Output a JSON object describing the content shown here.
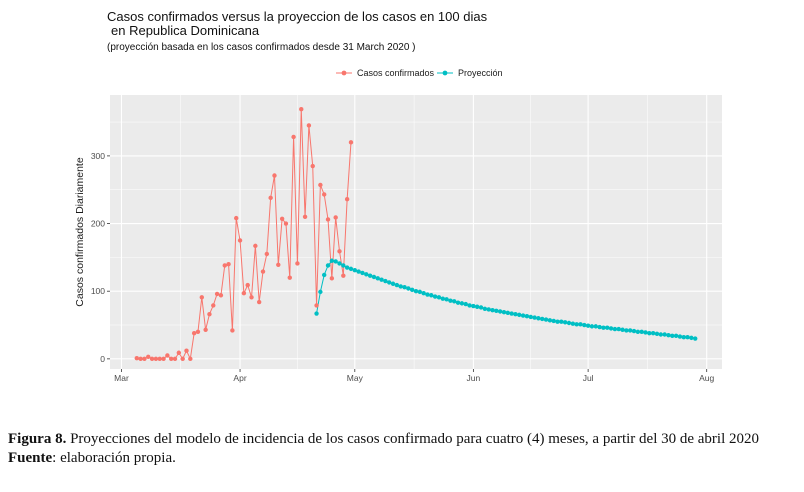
{
  "title_line1": "Casos confirmados  versus la proyeccion de los casos en 100 dias",
  "title_line2": "en Republica Dominicana",
  "subtitle": "(proyección basada en los casos confirmados desde 31 March 2020 )",
  "caption": {
    "figure_label": "Figura 8.",
    "figure_text": " Proyecciones del modelo de incidencia de los casos confirmado para cuatro (4) meses, a partir del 30 de abril 2020",
    "source_label": "Fuente",
    "source_text": ": elaboración propia."
  },
  "colors": {
    "panel_bg": "#ebebeb",
    "grid": "#ffffff",
    "confirmed": "#f8766d",
    "projection": "#00bfc4"
  },
  "chart_data": {
    "type": "line",
    "title": "Casos confirmados  versus la proyeccion de los casos en 100 dias en Republica Dominicana",
    "subtitle": "(proyección basada en los casos confirmados desde 31 March 2020 )",
    "xlabel": "",
    "ylabel": "Casos confirmados Diariamente",
    "xlim": [
      "2020-02-27",
      "2020-08-05"
    ],
    "ylim": [
      -15,
      390
    ],
    "x_ticks": [
      {
        "date": "2020-03-01",
        "label": "Mar"
      },
      {
        "date": "2020-04-01",
        "label": "Apr"
      },
      {
        "date": "2020-05-01",
        "label": "May"
      },
      {
        "date": "2020-06-01",
        "label": "Jun"
      },
      {
        "date": "2020-07-01",
        "label": "Jul"
      },
      {
        "date": "2020-08-01",
        "label": "Aug"
      }
    ],
    "y_ticks": [
      0,
      100,
      200,
      300
    ],
    "grid": true,
    "legend_position": "top",
    "series": [
      {
        "name": "Casos confirmados",
        "color": "#f8766d",
        "points": [
          [
            "2020-03-05",
            1
          ],
          [
            "2020-03-06",
            0
          ],
          [
            "2020-03-07",
            0
          ],
          [
            "2020-03-08",
            3
          ],
          [
            "2020-03-09",
            0
          ],
          [
            "2020-03-10",
            0
          ],
          [
            "2020-03-11",
            0
          ],
          [
            "2020-03-12",
            0
          ],
          [
            "2020-03-13",
            5
          ],
          [
            "2020-03-14",
            0
          ],
          [
            "2020-03-15",
            0
          ],
          [
            "2020-03-16",
            9
          ],
          [
            "2020-03-17",
            0
          ],
          [
            "2020-03-18",
            12
          ],
          [
            "2020-03-19",
            0
          ],
          [
            "2020-03-20",
            38
          ],
          [
            "2020-03-21",
            40
          ],
          [
            "2020-03-22",
            91
          ],
          [
            "2020-03-23",
            43
          ],
          [
            "2020-03-24",
            66
          ],
          [
            "2020-03-25",
            79
          ],
          [
            "2020-03-26",
            96
          ],
          [
            "2020-03-27",
            94
          ],
          [
            "2020-03-28",
            138
          ],
          [
            "2020-03-29",
            140
          ],
          [
            "2020-03-30",
            42
          ],
          [
            "2020-03-31",
            208
          ],
          [
            "2020-04-01",
            175
          ],
          [
            "2020-04-02",
            97
          ],
          [
            "2020-04-03",
            109
          ],
          [
            "2020-04-04",
            91
          ],
          [
            "2020-04-05",
            167
          ],
          [
            "2020-04-06",
            84
          ],
          [
            "2020-04-07",
            129
          ],
          [
            "2020-04-08",
            155
          ],
          [
            "2020-04-09",
            238
          ],
          [
            "2020-04-10",
            271
          ],
          [
            "2020-04-11",
            139
          ],
          [
            "2020-04-12",
            207
          ],
          [
            "2020-04-13",
            200
          ],
          [
            "2020-04-14",
            120
          ],
          [
            "2020-04-15",
            328
          ],
          [
            "2020-04-16",
            141
          ],
          [
            "2020-04-17",
            369
          ],
          [
            "2020-04-18",
            210
          ],
          [
            "2020-04-19",
            345
          ],
          [
            "2020-04-20",
            285
          ],
          [
            "2020-04-21",
            79
          ],
          [
            "2020-04-22",
            257
          ],
          [
            "2020-04-23",
            243
          ],
          [
            "2020-04-24",
            206
          ],
          [
            "2020-04-25",
            119
          ],
          [
            "2020-04-26",
            209
          ],
          [
            "2020-04-27",
            159
          ],
          [
            "2020-04-28",
            123
          ],
          [
            "2020-04-29",
            236
          ],
          [
            "2020-04-30",
            320
          ]
        ]
      },
      {
        "name": "Proyección",
        "color": "#00bfc4",
        "points": [
          [
            "2020-04-21",
            67
          ],
          [
            "2020-04-22",
            99
          ],
          [
            "2020-04-23",
            124
          ],
          [
            "2020-04-24",
            138
          ],
          [
            "2020-04-25",
            145
          ],
          [
            "2020-04-26",
            144
          ],
          [
            "2020-04-27",
            141
          ],
          [
            "2020-04-28",
            138
          ],
          [
            "2020-04-29",
            135
          ],
          [
            "2020-04-30",
            133
          ],
          [
            "2020-05-01",
            131
          ],
          [
            "2020-05-02",
            129
          ],
          [
            "2020-05-03",
            127
          ],
          [
            "2020-05-04",
            125
          ],
          [
            "2020-05-05",
            123
          ],
          [
            "2020-05-06",
            121
          ],
          [
            "2020-05-07",
            119
          ],
          [
            "2020-05-08",
            117
          ],
          [
            "2020-05-09",
            115
          ],
          [
            "2020-05-10",
            113
          ],
          [
            "2020-05-11",
            111
          ],
          [
            "2020-05-12",
            109
          ],
          [
            "2020-05-13",
            107
          ],
          [
            "2020-05-14",
            106
          ],
          [
            "2020-05-15",
            104
          ],
          [
            "2020-05-16",
            102
          ],
          [
            "2020-05-17",
            100
          ],
          [
            "2020-05-18",
            99
          ],
          [
            "2020-05-19",
            97
          ],
          [
            "2020-05-20",
            95
          ],
          [
            "2020-05-21",
            94
          ],
          [
            "2020-05-22",
            92
          ],
          [
            "2020-05-23",
            91
          ],
          [
            "2020-05-24",
            89
          ],
          [
            "2020-05-25",
            88
          ],
          [
            "2020-05-26",
            86
          ],
          [
            "2020-05-27",
            85
          ],
          [
            "2020-05-28",
            83
          ],
          [
            "2020-05-29",
            82
          ],
          [
            "2020-05-30",
            81
          ],
          [
            "2020-05-31",
            79
          ],
          [
            "2020-06-01",
            78
          ],
          [
            "2020-06-02",
            77
          ],
          [
            "2020-06-03",
            76
          ],
          [
            "2020-06-04",
            74
          ],
          [
            "2020-06-05",
            73
          ],
          [
            "2020-06-06",
            72
          ],
          [
            "2020-06-07",
            71
          ],
          [
            "2020-06-08",
            70
          ],
          [
            "2020-06-09",
            69
          ],
          [
            "2020-06-10",
            68
          ],
          [
            "2020-06-11",
            67
          ],
          [
            "2020-06-12",
            66
          ],
          [
            "2020-06-13",
            65
          ],
          [
            "2020-06-14",
            64
          ],
          [
            "2020-06-15",
            63
          ],
          [
            "2020-06-16",
            62
          ],
          [
            "2020-06-17",
            61
          ],
          [
            "2020-06-18",
            60
          ],
          [
            "2020-06-19",
            59
          ],
          [
            "2020-06-20",
            58
          ],
          [
            "2020-06-21",
            57
          ],
          [
            "2020-06-22",
            56
          ],
          [
            "2020-06-23",
            55
          ],
          [
            "2020-06-24",
            55
          ],
          [
            "2020-06-25",
            54
          ],
          [
            "2020-06-26",
            53
          ],
          [
            "2020-06-27",
            52
          ],
          [
            "2020-06-28",
            51
          ],
          [
            "2020-06-29",
            51
          ],
          [
            "2020-06-30",
            50
          ],
          [
            "2020-07-01",
            49
          ],
          [
            "2020-07-02",
            48
          ],
          [
            "2020-07-03",
            48
          ],
          [
            "2020-07-04",
            47
          ],
          [
            "2020-07-05",
            46
          ],
          [
            "2020-07-06",
            46
          ],
          [
            "2020-07-07",
            45
          ],
          [
            "2020-07-08",
            44
          ],
          [
            "2020-07-09",
            44
          ],
          [
            "2020-07-10",
            43
          ],
          [
            "2020-07-11",
            42
          ],
          [
            "2020-07-12",
            42
          ],
          [
            "2020-07-13",
            41
          ],
          [
            "2020-07-14",
            40
          ],
          [
            "2020-07-15",
            40
          ],
          [
            "2020-07-16",
            39
          ],
          [
            "2020-07-17",
            38
          ],
          [
            "2020-07-18",
            38
          ],
          [
            "2020-07-19",
            37
          ],
          [
            "2020-07-20",
            36
          ],
          [
            "2020-07-21",
            36
          ],
          [
            "2020-07-22",
            35
          ],
          [
            "2020-07-23",
            34
          ],
          [
            "2020-07-24",
            34
          ],
          [
            "2020-07-25",
            33
          ],
          [
            "2020-07-26",
            32
          ],
          [
            "2020-07-27",
            32
          ],
          [
            "2020-07-28",
            31
          ],
          [
            "2020-07-29",
            30
          ]
        ]
      }
    ]
  }
}
